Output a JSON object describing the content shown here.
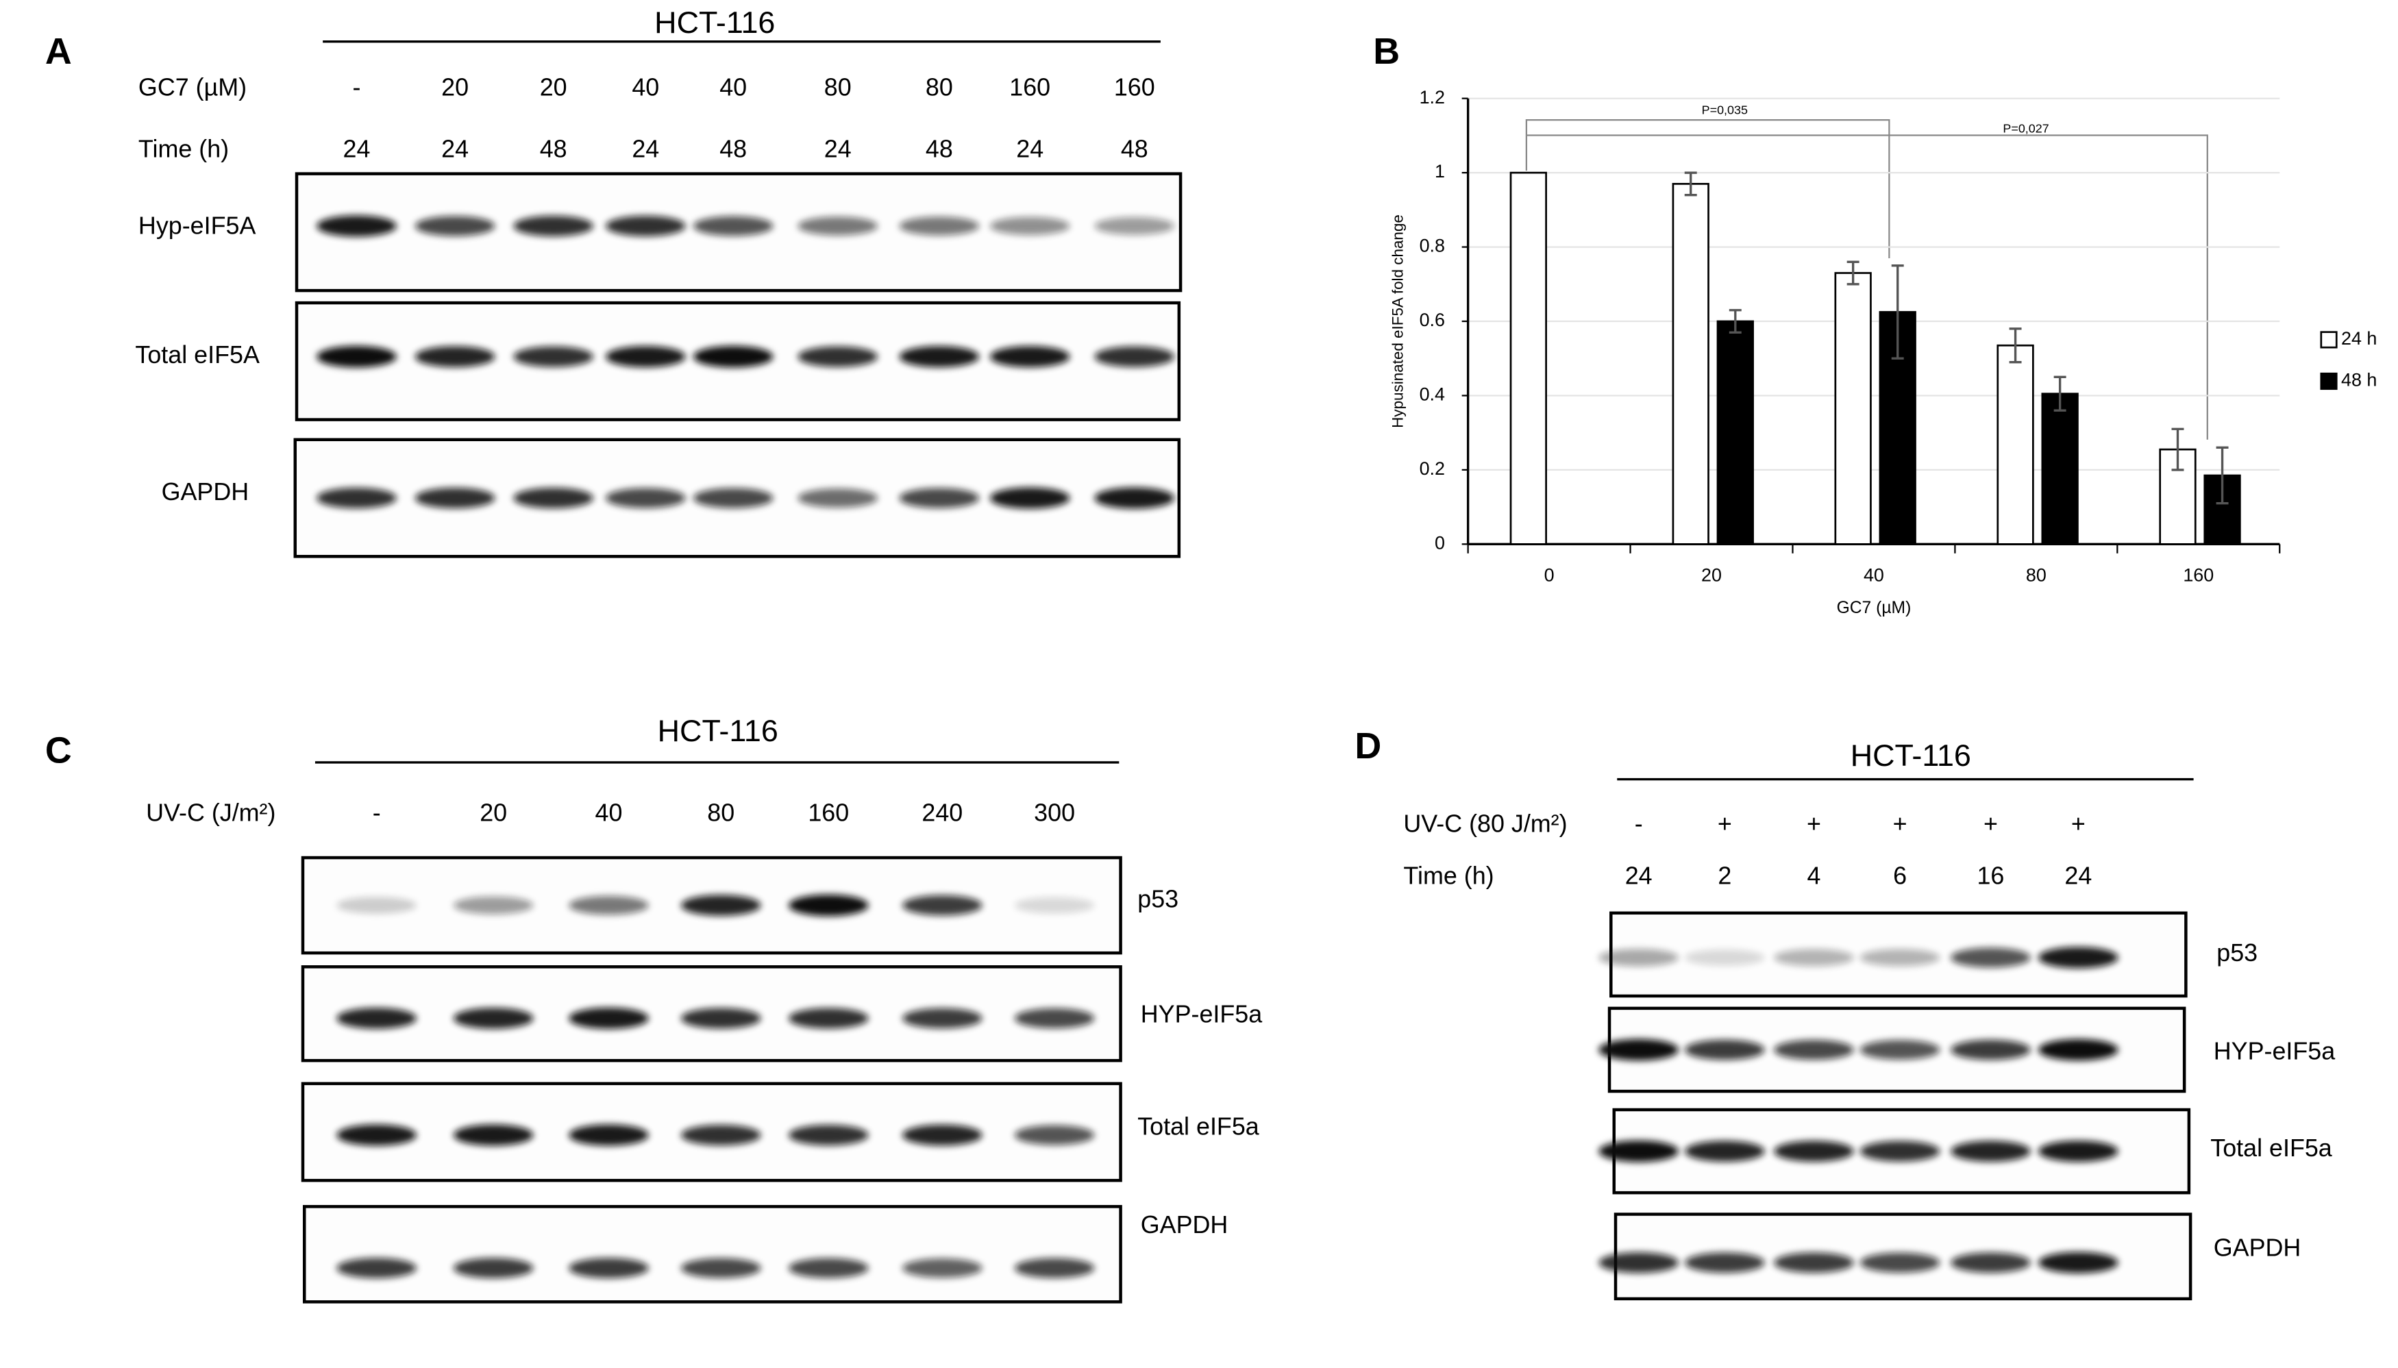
{
  "panel_a": {
    "letter": "A",
    "cell_line": "HCT-116",
    "rows": [
      {
        "label": "GC7 (µM)",
        "lanes": [
          "-",
          "20",
          "20",
          "40",
          "40",
          "80",
          "80",
          "160",
          "160"
        ]
      },
      {
        "label": "Time (h)",
        "lanes": [
          "24",
          "24",
          "48",
          "24",
          "48",
          "24",
          "48",
          "24",
          "48"
        ]
      }
    ],
    "blots": [
      "Hyp-eIF5A",
      "Total eIF5A",
      "GAPDH"
    ]
  },
  "chart_data": {
    "type": "bar",
    "panel_label": "B",
    "x_label": "GC7 (µM)",
    "y_label": "Hypusinated eIF5A fold change",
    "categories": [
      "0",
      "20",
      "40",
      "80",
      "160"
    ],
    "series": [
      {
        "name": "24 h",
        "color": "#ffffff",
        "values": [
          1,
          0.97,
          0.73,
          0.535,
          0.255
        ],
        "errors": [
          null,
          0.03,
          0.03,
          0.045,
          0.055
        ]
      },
      {
        "name": "48 h",
        "color": "#000000",
        "values": [
          null,
          0.6,
          0.625,
          0.405,
          0.185
        ],
        "errors": [
          null,
          0.03,
          0.125,
          0.045,
          0.075
        ]
      }
    ],
    "ylim": [
      0,
      1.2
    ],
    "yticks": [
      0,
      0.2,
      0.4,
      0.6,
      0.8,
      1,
      1.2
    ],
    "grid": true,
    "legend": "right",
    "annotations": [
      "P=0,035",
      "P=0,027"
    ]
  },
  "panel_c": {
    "letter": "C",
    "cell_line": "HCT-116",
    "rows": [
      {
        "label": "UV-C (J/m²)",
        "lanes": [
          "-",
          "20",
          "40",
          "80",
          "160",
          "240",
          "300"
        ]
      }
    ],
    "blots": [
      "p53",
      "HYP-eIF5a",
      "Total eIF5a",
      "GAPDH"
    ]
  },
  "panel_d": {
    "letter": "D",
    "cell_line": "HCT-116",
    "rows": [
      {
        "label": "UV-C (80 J/m²)",
        "lanes": [
          "-",
          "+",
          "+",
          "+",
          "+",
          "+"
        ]
      },
      {
        "label": "Time (h)",
        "lanes": [
          "24",
          "2",
          "4",
          "6",
          "16",
          "24"
        ]
      }
    ],
    "blots": [
      "p53",
      "HYP-eIF5a",
      "Total eIF5a",
      "GAPDH"
    ]
  }
}
